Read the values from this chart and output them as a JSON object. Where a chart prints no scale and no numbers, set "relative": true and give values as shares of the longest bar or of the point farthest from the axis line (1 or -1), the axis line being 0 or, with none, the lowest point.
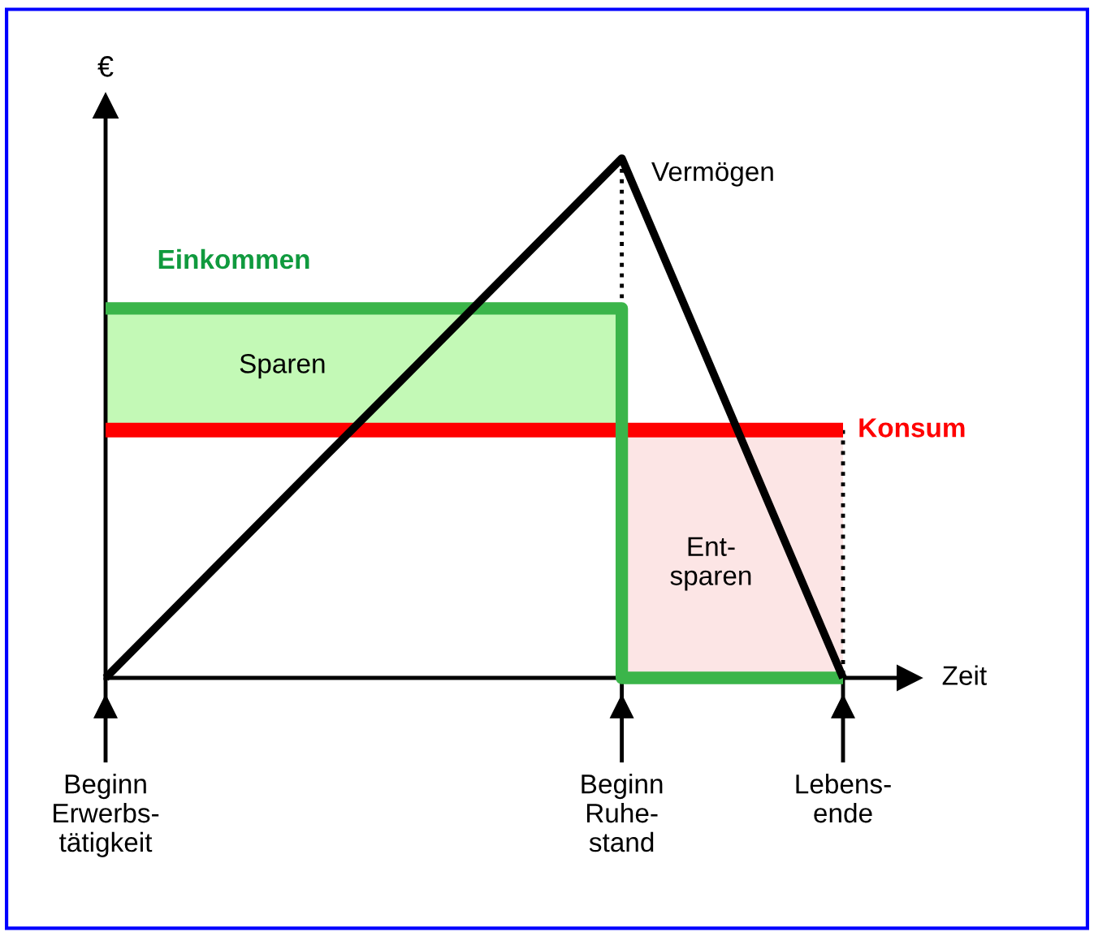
{
  "chart_data": {
    "type": "line",
    "relative": true,
    "ylabel": "€",
    "xlabel": "Zeit",
    "categories": [
      "Beginn\nErwerbs-\ntätigkeit",
      null,
      null,
      null,
      null,
      null,
      null,
      "Beginn\nRuhe-\nstand",
      null,
      null,
      "Lebens-\nende"
    ],
    "series": [
      {
        "name": "Vermögen",
        "color": "#000000",
        "values": [
          0,
          0.143,
          0.286,
          0.429,
          0.571,
          0.714,
          0.857,
          1,
          0.667,
          0.333,
          0
        ]
      },
      {
        "name": "Einkommen",
        "type": "step",
        "color": "#3bb54a",
        "values": [
          0.711,
          0.711,
          0.711,
          0.711,
          0.711,
          0.711,
          0.711,
          0,
          0,
          0,
          0
        ]
      },
      {
        "name": "Konsum",
        "color": "#ff0000",
        "values": [
          0.477,
          0.477,
          0.477,
          0.477,
          0.477,
          0.477,
          0.477,
          0.477,
          0.477,
          0.477,
          0.477
        ]
      }
    ],
    "annotations": [
      "Sparen",
      "Ent-\nsparen"
    ],
    "legend": false,
    "grid": false
  }
}
